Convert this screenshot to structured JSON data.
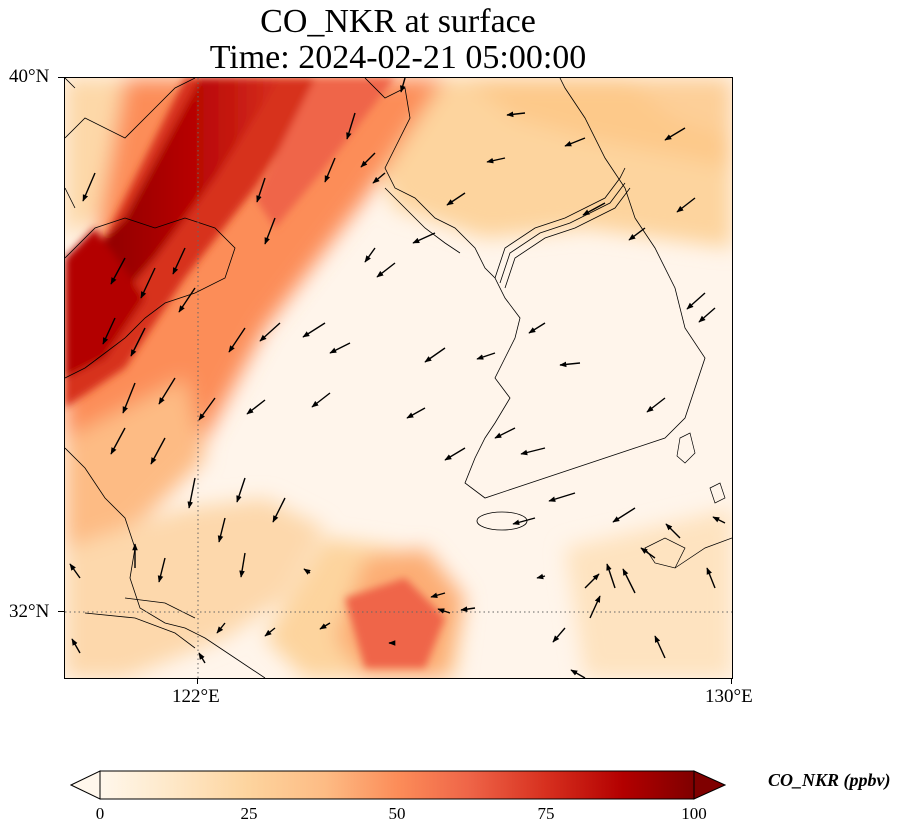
{
  "title": {
    "line1": "CO_NKR at surface",
    "line2": "Time: 2024-02-21 05:00:00"
  },
  "axes": {
    "lat_ticks": [
      {
        "value": 40,
        "label": "40°N"
      },
      {
        "value": 32,
        "label": "32°N"
      }
    ],
    "lon_ticks": [
      {
        "value": 122,
        "label": "122°E"
      },
      {
        "value": 130,
        "label": "130°E"
      }
    ],
    "extent": {
      "lon_min": 120,
      "lon_max": 130,
      "lat_min": 31,
      "lat_max": 40
    },
    "gridlines": "dotted at 122°E and 32°N"
  },
  "colorbar": {
    "label": "CO_NKR (ppbv)",
    "colormap": "OrRd",
    "range": [
      0,
      100
    ],
    "extend": "both",
    "ticks": [
      {
        "value": 0,
        "label": "0"
      },
      {
        "value": 25,
        "label": "25"
      },
      {
        "value": 50,
        "label": "50"
      },
      {
        "value": 75,
        "label": "75"
      },
      {
        "value": 100,
        "label": "100"
      }
    ],
    "colors": [
      "#fff7ec",
      "#fee8c8",
      "#fdd49e",
      "#fdbb84",
      "#fc8d59",
      "#ef6548",
      "#d7301f",
      "#b30000",
      "#7f0000"
    ]
  },
  "field_description_colors": {
    "low": "#fff5eb",
    "mid": "#fdd5a0",
    "high": "#7f0000"
  }
}
